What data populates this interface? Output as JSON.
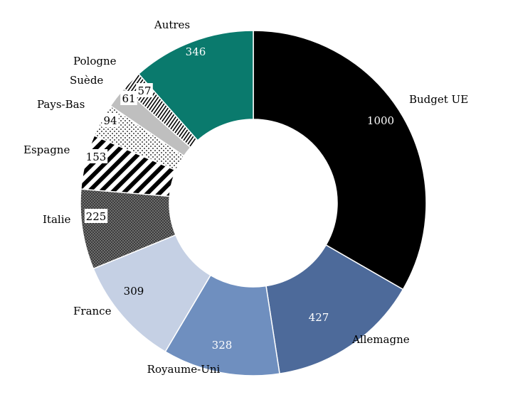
{
  "chart_data": {
    "type": "pie",
    "donut": true,
    "title": "",
    "categories": [
      "Budget UE",
      "Allemagne",
      "Royaume-Uni",
      "France",
      "Italie",
      "Espagne",
      "Pays-Bas",
      "Suède",
      "Pologne",
      "Autres"
    ],
    "values": [
      1000,
      427,
      328,
      309,
      225,
      153,
      94,
      61,
      57,
      346
    ],
    "fills": [
      "#000000",
      "#4d6a9a",
      "#6f8fbf",
      "#c5d0e4",
      "pattern:checker-gray",
      "pattern:diagonal-black",
      "pattern:dots",
      "#bfbfbf",
      "pattern:vertical-lines",
      "#0a7a6d"
    ],
    "legend": "none (category labels placed beside slices)"
  },
  "labels": {
    "values_text": [
      "1000",
      "427",
      "328",
      "309",
      "225",
      "153",
      "94",
      "61",
      "57",
      "346"
    ]
  }
}
